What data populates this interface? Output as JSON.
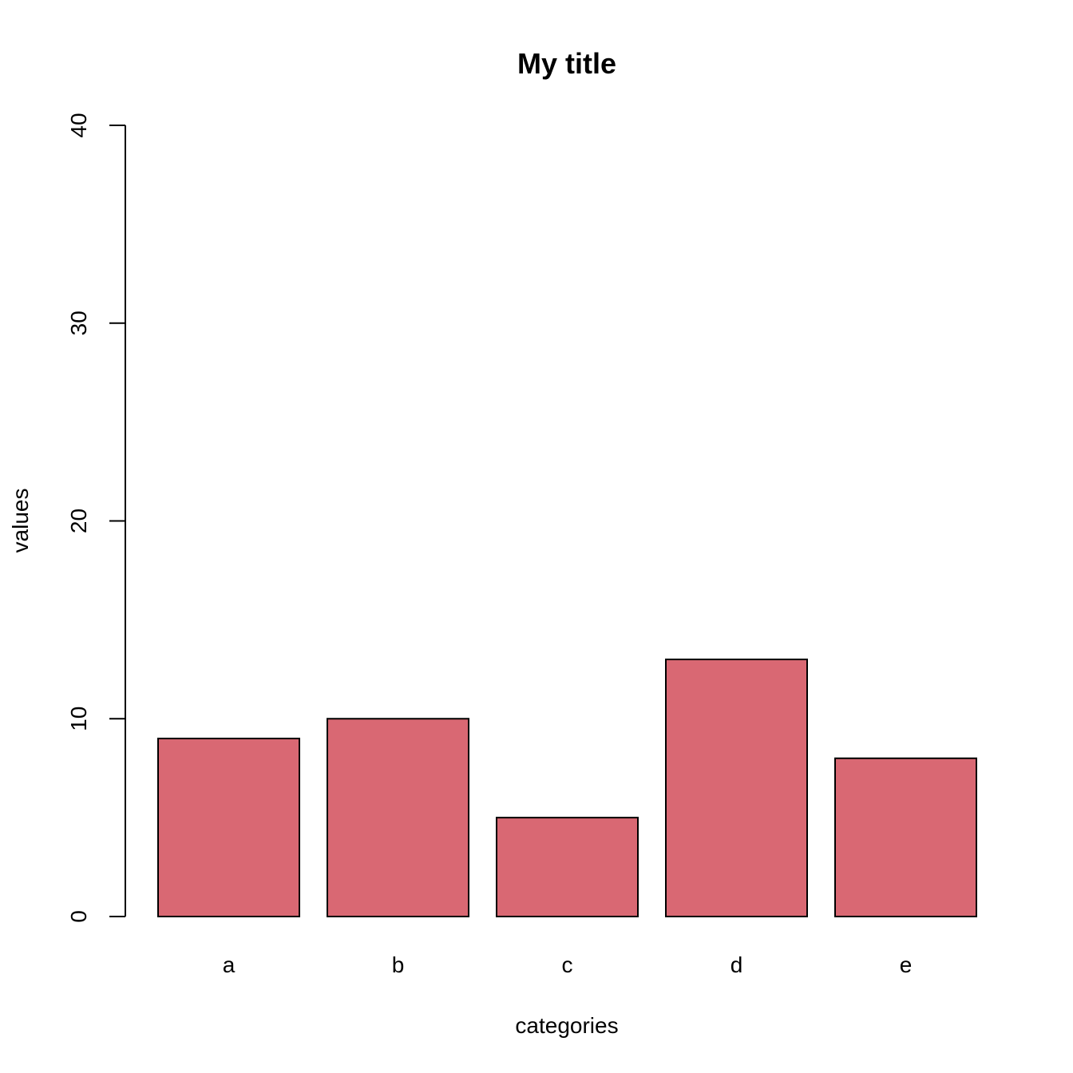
{
  "chart_data": {
    "type": "bar",
    "title": "My title",
    "xlabel": "categories",
    "ylabel": "values",
    "categories": [
      "a",
      "b",
      "c",
      "d",
      "e"
    ],
    "values": [
      9,
      10,
      5,
      13,
      8
    ],
    "ylim": [
      0,
      40
    ],
    "yticks": [
      "0",
      "10",
      "20",
      "30",
      "40"
    ],
    "grid": false,
    "bar_color": "#d96873",
    "bar_border_color": "#000000"
  }
}
